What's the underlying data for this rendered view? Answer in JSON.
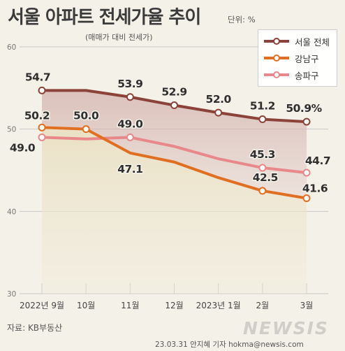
{
  "header": {
    "title": "서울 아파트 전세가율 추이",
    "unit": "단위: %",
    "subtitle": "(매매가 대비 전세가)"
  },
  "footer": {
    "source": "자료: KB부동산",
    "credit": "23.03.31 안지혜 기자 hokma@newsis.com",
    "watermark": "NEWSIS"
  },
  "colors": {
    "seoul": "#8b4238",
    "gangnam": "#e06f22",
    "songpa": "#e8888a",
    "grid": "#c9c9c9",
    "background": "#f4f1e8"
  },
  "chart_data": {
    "type": "line",
    "categories": [
      "2022년 9월",
      "10월",
      "11월",
      "12월",
      "2023년 1월",
      "2월",
      "3월"
    ],
    "ylim": [
      30,
      60
    ],
    "yticks": [
      30,
      40,
      50,
      60
    ],
    "grid": true,
    "legend_position": "top-right",
    "series": [
      {
        "key": "seoul",
        "name": "서울 전체",
        "values": [
          54.7,
          54.7,
          53.9,
          52.9,
          52.0,
          51.2,
          50.9
        ],
        "markers": [
          0,
          2,
          3,
          4,
          5,
          6
        ],
        "labels": [
          "54.7",
          "",
          "53.9",
          "52.9",
          "52.0",
          "51.2",
          "50.9%"
        ]
      },
      {
        "key": "gangnam",
        "name": "강남구",
        "values": [
          50.2,
          50.0,
          47.1,
          46.0,
          44.1,
          42.5,
          41.6
        ],
        "markers": [
          0,
          1,
          5,
          6
        ],
        "labels": [
          "50.2",
          "50.0",
          "47.1",
          "",
          "",
          "42.5",
          "41.6"
        ]
      },
      {
        "key": "songpa",
        "name": "송파구",
        "values": [
          49.0,
          48.8,
          49.0,
          47.9,
          46.4,
          45.3,
          44.7
        ],
        "markers": [
          0,
          2,
          5,
          6
        ],
        "labels": [
          "49.0",
          "",
          "49.0",
          "",
          "",
          "45.3",
          "44.7"
        ]
      }
    ]
  }
}
